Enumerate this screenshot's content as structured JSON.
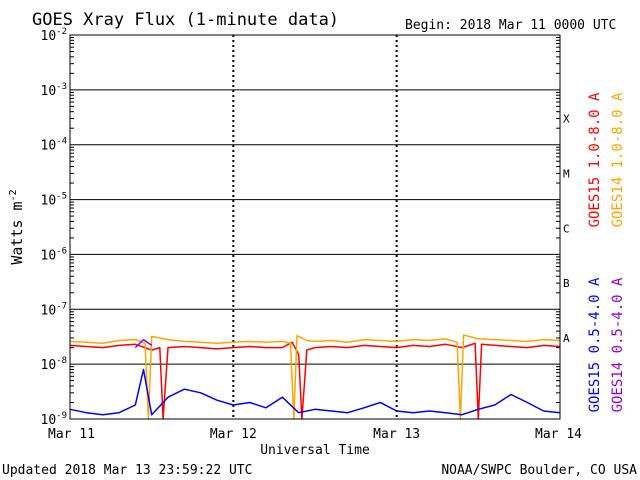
{
  "header": {
    "title": "GOES Xray Flux (1-minute data)",
    "begin": "Begin:  2018 Mar 11 0000 UTC"
  },
  "footer": {
    "updated": "Updated 2018 Mar 13 23:59:22 UTC",
    "source": "NOAA/SWPC Boulder, CO USA"
  },
  "chart_data": {
    "type": "line",
    "title": "GOES Xray Flux (1-minute data)",
    "xlabel": "Universal Time",
    "ylabel": "Watts m^-2",
    "yscale": "log",
    "ylim": [
      1e-09,
      0.01
    ],
    "xlim": [
      0,
      3
    ],
    "x_ticks": [
      {
        "value": 0,
        "label": "Mar 11"
      },
      {
        "value": 1,
        "label": "Mar 12"
      },
      {
        "value": 2,
        "label": "Mar 13"
      },
      {
        "value": 3,
        "label": "Mar 14"
      }
    ],
    "y_ticks": [
      {
        "exp": -9,
        "label": "10",
        "sup": "-9"
      },
      {
        "exp": -8,
        "label": "10",
        "sup": "-8"
      },
      {
        "exp": -7,
        "label": "10",
        "sup": "-7"
      },
      {
        "exp": -6,
        "label": "10",
        "sup": "-6"
      },
      {
        "exp": -5,
        "label": "10",
        "sup": "-5"
      },
      {
        "exp": -4,
        "label": "10",
        "sup": "-4"
      },
      {
        "exp": -3,
        "label": "10",
        "sup": "-3"
      },
      {
        "exp": -2,
        "label": "10",
        "sup": "-2"
      }
    ],
    "flare_classes": [
      {
        "label": "A",
        "level": 1e-08
      },
      {
        "label": "B",
        "level": 1e-07
      },
      {
        "label": "C",
        "level": 1e-06
      },
      {
        "label": "M",
        "level": 1e-05
      },
      {
        "label": "X",
        "level": 0.0001
      }
    ],
    "grid": {
      "horizontal": true,
      "vertical_dashed": true
    },
    "legend_position": "right",
    "series": [
      {
        "name": "GOES15 1.0-8.0 A",
        "color": "#ff0000",
        "x": [
          0,
          0.1,
          0.2,
          0.3,
          0.4,
          0.5,
          0.55,
          0.57,
          0.6,
          0.7,
          0.8,
          0.9,
          1.0,
          1.1,
          1.2,
          1.3,
          1.36,
          1.4,
          1.42,
          1.45,
          1.5,
          1.6,
          1.7,
          1.8,
          1.9,
          2.0,
          2.1,
          2.2,
          2.3,
          2.4,
          2.48,
          2.5,
          2.52,
          2.6,
          2.7,
          2.8,
          2.9,
          3.0
        ],
        "y": [
          2.2e-08,
          2.1e-08,
          2e-08,
          2.2e-08,
          2.3e-08,
          1.8e-08,
          2e-08,
          1e-09,
          2e-08,
          2.1e-08,
          2e-08,
          1.9e-08,
          2e-08,
          2.1e-08,
          2e-08,
          2e-08,
          2.5e-08,
          1.5e-08,
          1e-09,
          1.8e-08,
          2e-08,
          2.1e-08,
          2e-08,
          2.2e-08,
          2.1e-08,
          2e-08,
          2.2e-08,
          2.1e-08,
          2.3e-08,
          2e-08,
          2.4e-08,
          1e-09,
          2.3e-08,
          2.2e-08,
          2.1e-08,
          2e-08,
          2.2e-08,
          2.1e-08
        ]
      },
      {
        "name": "GOES14 1.0-8.0 A",
        "color": "#ffa500",
        "x": [
          0,
          0.1,
          0.2,
          0.3,
          0.4,
          0.46,
          0.48,
          0.5,
          0.6,
          0.7,
          0.8,
          0.9,
          1.0,
          1.1,
          1.2,
          1.3,
          1.35,
          1.37,
          1.39,
          1.45,
          1.5,
          1.6,
          1.7,
          1.8,
          1.9,
          2.0,
          2.1,
          2.2,
          2.3,
          2.37,
          2.39,
          2.41,
          2.5,
          2.6,
          2.7,
          2.8,
          2.9,
          3.0
        ],
        "y": [
          2.6e-08,
          2.5e-08,
          2.4e-08,
          2.7e-08,
          2.8e-08,
          2.4e-08,
          1e-09,
          3.2e-08,
          2.8e-08,
          2.6e-08,
          2.5e-08,
          2.4e-08,
          2.5e-08,
          2.6e-08,
          2.5e-08,
          2.6e-08,
          2.4e-08,
          1e-09,
          3.3e-08,
          2.7e-08,
          2.6e-08,
          2.7e-08,
          2.5e-08,
          2.8e-08,
          2.7e-08,
          2.6e-08,
          2.8e-08,
          2.7e-08,
          2.9e-08,
          2.5e-08,
          1e-09,
          3.4e-08,
          2.9e-08,
          2.8e-08,
          2.7e-08,
          2.6e-08,
          2.8e-08,
          2.7e-08
        ]
      },
      {
        "name": "GOES15 0.5-4.0 A",
        "color": "#0000ff",
        "x": [
          0,
          0.1,
          0.2,
          0.3,
          0.4,
          0.45,
          0.5,
          0.6,
          0.7,
          0.8,
          0.9,
          1.0,
          1.1,
          1.2,
          1.3,
          1.4,
          1.5,
          1.6,
          1.7,
          1.8,
          1.9,
          2.0,
          2.1,
          2.2,
          2.3,
          2.4,
          2.5,
          2.6,
          2.7,
          2.8,
          2.9,
          3.0
        ],
        "y": [
          1.5e-09,
          1.3e-09,
          1.2e-09,
          1.3e-09,
          1.8e-09,
          8e-09,
          1.2e-09,
          2.5e-09,
          3.5e-09,
          3e-09,
          2.2e-09,
          1.8e-09,
          2e-09,
          1.6e-09,
          2.5e-09,
          1.3e-09,
          1.5e-09,
          1.4e-09,
          1.3e-09,
          1.6e-09,
          2e-09,
          1.4e-09,
          1.3e-09,
          1.4e-09,
          1.3e-09,
          1.2e-09,
          1.5e-09,
          1.8e-09,
          2.8e-09,
          2e-09,
          1.4e-09,
          1.3e-09
        ]
      },
      {
        "name": "GOES14 0.5-4.0 A",
        "color": "#9400d3",
        "x": [
          0.4,
          0.45,
          0.5
        ],
        "y": [
          2e-08,
          2.8e-08,
          2.2e-08
        ]
      }
    ]
  }
}
